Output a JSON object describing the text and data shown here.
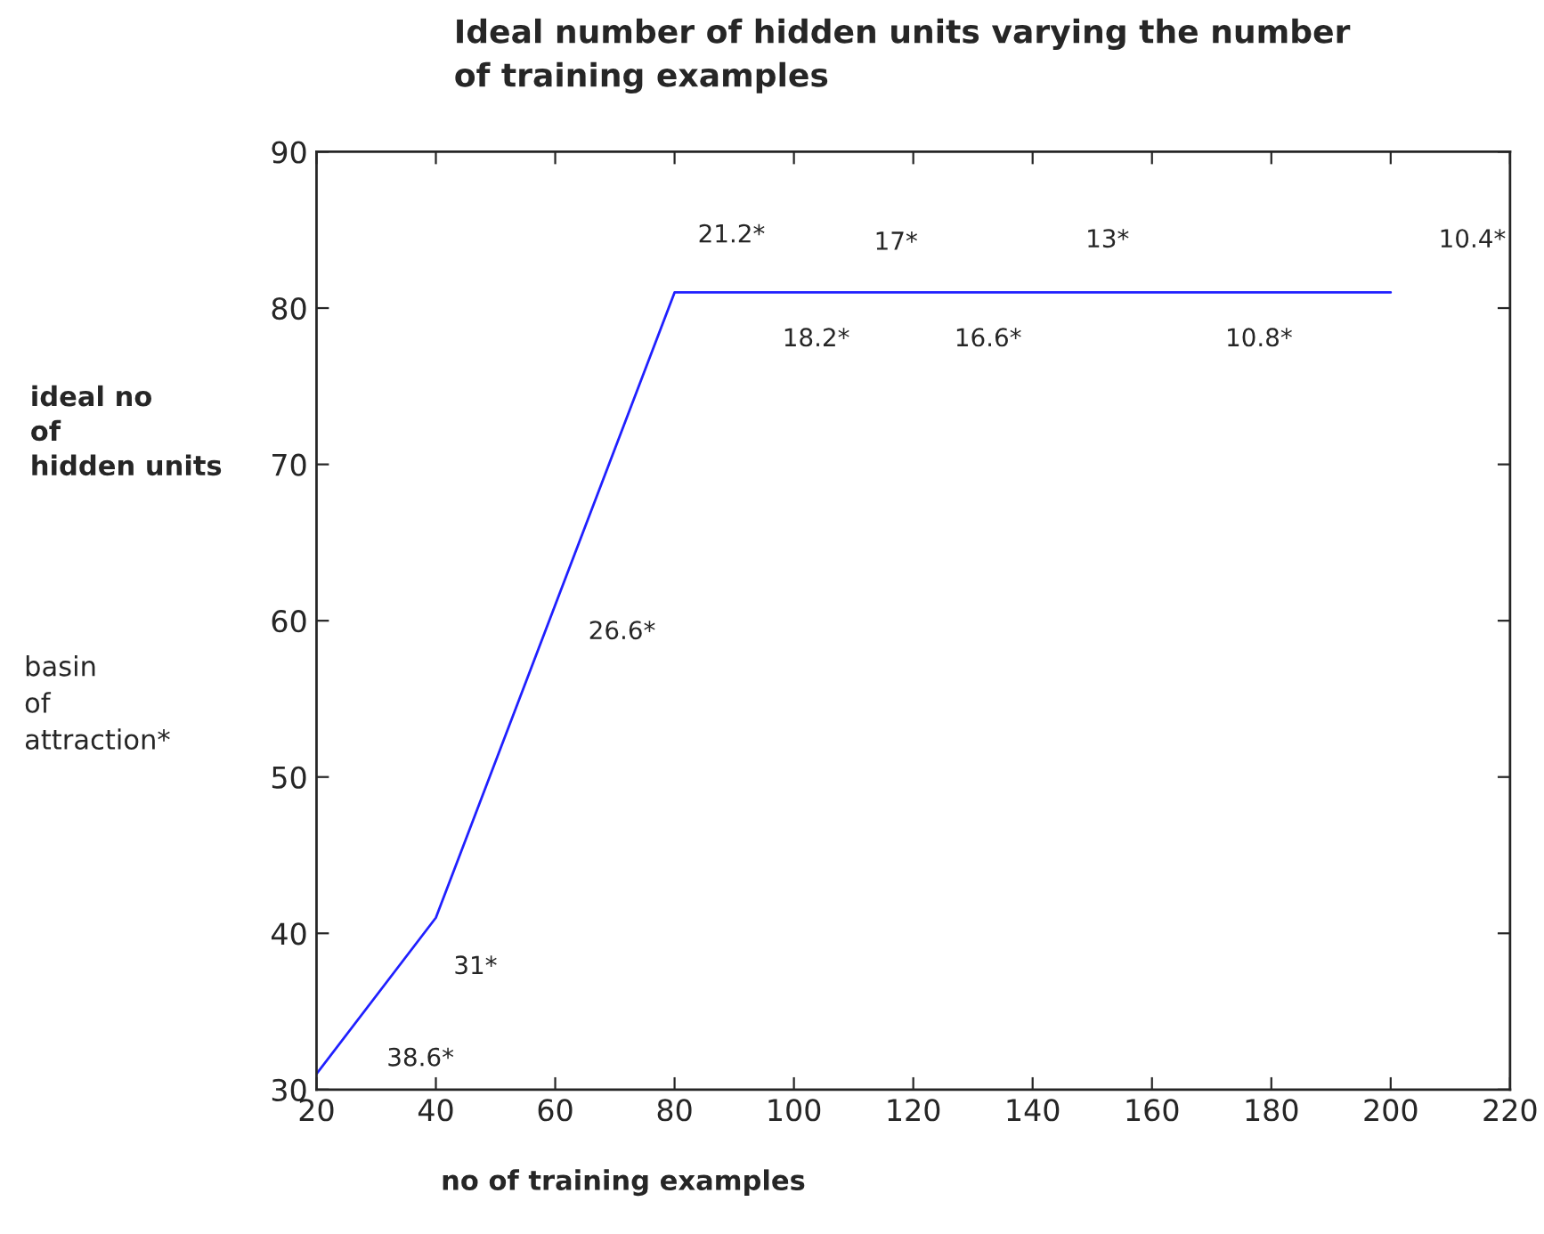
{
  "chart_data": {
    "type": "line",
    "title": "Ideal number of hidden units varying the number\nof training examples",
    "xlabel": "no of training examples",
    "ylabel": "ideal no\nof\nhidden units",
    "x": [
      20,
      40,
      60,
      80,
      100,
      120,
      140,
      160,
      180,
      200
    ],
    "series": [
      {
        "color": "#2020ff",
        "values": [
          31,
          41,
          61,
          81,
          81,
          81,
          81,
          81,
          81,
          81
        ]
      }
    ],
    "xlim": [
      20,
      220
    ],
    "xticks": [
      20,
      40,
      60,
      80,
      100,
      120,
      140,
      160,
      180,
      200,
      220
    ],
    "ylim": [
      30,
      90
    ],
    "yticks": [
      30,
      40,
      50,
      60,
      70,
      80,
      90
    ],
    "grid": false,
    "marker": "none",
    "line_style": "solid",
    "annotations": [
      "basin\nof\nattraction*",
      {
        "text": "38.6*",
        "x": 20,
        "y": 31
      },
      {
        "text": "31*",
        "x": 40,
        "y": 41
      },
      {
        "text": "26.6*",
        "x": 60,
        "y": 61
      },
      {
        "text": "21.2*",
        "x": 80,
        "y": 81
      },
      {
        "text": "18.2*",
        "x": 100,
        "y": 81
      },
      {
        "text": "17*",
        "x": 120,
        "y": 81
      },
      {
        "text": "16.6*",
        "x": 140,
        "y": 81
      },
      {
        "text": "13*",
        "x": 160,
        "y": 81
      },
      {
        "text": "10.8*",
        "x": 180,
        "y": 81
      },
      {
        "text": "10.4*",
        "x": 200,
        "y": 81
      }
    ]
  }
}
